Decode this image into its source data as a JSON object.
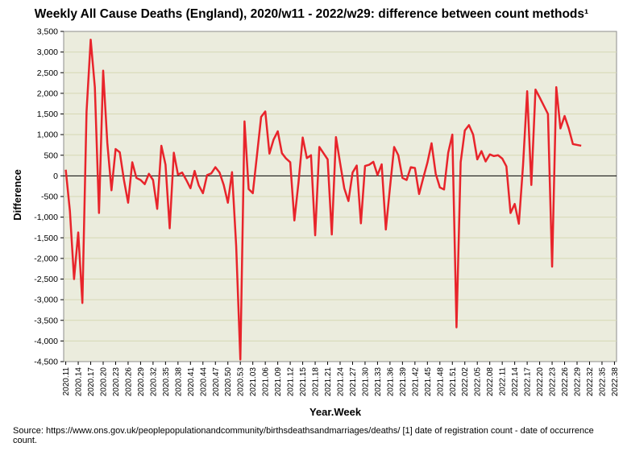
{
  "chart_data": {
    "type": "line",
    "title": "Weekly All Cause Deaths (England), 2020/w11 - 2022/w29: difference between count methods¹",
    "xlabel": "Year.Week",
    "ylabel": "Difference",
    "ylim": [
      -4500,
      3500
    ],
    "yticks": [
      3500,
      3000,
      2500,
      2000,
      1500,
      1000,
      500,
      0,
      -500,
      -1000,
      -1500,
      -2000,
      -2500,
      -3000,
      -3500,
      -4000,
      -4500
    ],
    "ytick_labels": [
      "3,500",
      "3,000",
      "2,500",
      "2,000",
      "1,500",
      "1,000",
      "500",
      "0",
      "-500",
      "-1,000",
      "-1,500",
      "-2,000",
      "-2,500",
      "-3,000",
      "-3,500",
      "-4,000",
      "-4,500"
    ],
    "x_tick_labels": [
      "2020.11",
      "2020.14",
      "2020.17",
      "2020.20",
      "2020.23",
      "2020.26",
      "2020.29",
      "2020.32",
      "2020.35",
      "2020.38",
      "2020.41",
      "2020.44",
      "2020.47",
      "2020.50",
      "2020.53",
      "2021.03",
      "2021.06",
      "2021.09",
      "2021.12",
      "2021.15",
      "2021.18",
      "2021.21",
      "2021.24",
      "2021.27",
      "2021.30",
      "2021.33",
      "2021.36",
      "2021.39",
      "2021.42",
      "2021.45",
      "2021.48",
      "2021.51",
      "2022.02",
      "2022.05",
      "2022.08",
      "2022.11",
      "2022.14",
      "2022.17",
      "2022.20",
      "2022.23",
      "2022.26",
      "2022.29",
      "2022.32",
      "2022.35",
      "2022.38"
    ],
    "x_tick_step": 3,
    "total_weeks": 133,
    "grid": true,
    "series": [
      {
        "name": "difference between count methods",
        "color": "#e8242b",
        "values": [
          150,
          -850,
          -2500,
          -1370,
          -3080,
          1550,
          3300,
          2150,
          -900,
          2550,
          800,
          -350,
          650,
          570,
          -100,
          -650,
          330,
          -50,
          -100,
          -200,
          50,
          -100,
          -800,
          730,
          270,
          -1270,
          560,
          30,
          80,
          -100,
          -300,
          120,
          -230,
          -420,
          20,
          60,
          210,
          80,
          -220,
          -650,
          90,
          -1700,
          -4450,
          1320,
          -320,
          -420,
          500,
          1430,
          1560,
          540,
          880,
          1080,
          550,
          420,
          330,
          -1080,
          -150,
          930,
          430,
          500,
          -1440,
          700,
          550,
          400,
          -1420,
          940,
          310,
          -300,
          -610,
          80,
          250,
          -1150,
          240,
          270,
          340,
          20,
          280,
          -1300,
          -280,
          700,
          500,
          -50,
          -100,
          210,
          190,
          -440,
          -50,
          320,
          790,
          50,
          -280,
          -330,
          560,
          1000,
          -3670,
          330,
          1100,
          1230,
          1000,
          400,
          600,
          350,
          520,
          480,
          500,
          420,
          230,
          -900,
          -680,
          -1160,
          250,
          2050,
          -220,
          2090,
          1900,
          1700,
          1500,
          -2200,
          2150,
          1150,
          1450,
          1150,
          770,
          750,
          730
        ]
      }
    ]
  },
  "source_note": "Source: https://www.ons.gov.uk/peoplepopulationandcommunity/birthsdeathsandmarriages/deaths/  [1] date of registration count - date of occurrence count."
}
